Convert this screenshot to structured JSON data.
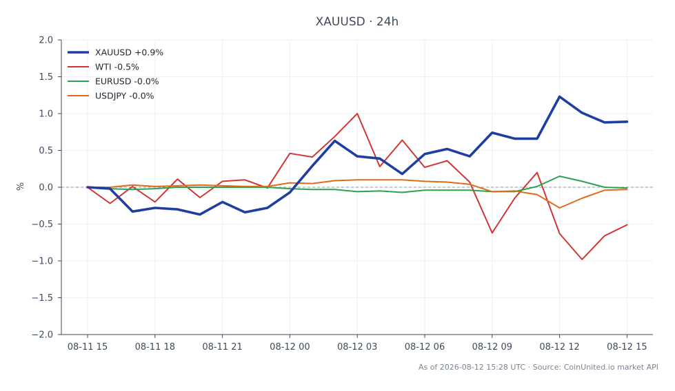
{
  "chart_data": {
    "type": "line",
    "title": "XAUUSD · 24h",
    "xlabel": "",
    "ylabel": "%",
    "ylim": [
      -2.0,
      2.0
    ],
    "yticks": [
      -2.0,
      -1.5,
      -1.0,
      -0.5,
      0.0,
      0.5,
      1.0,
      1.5,
      2.0
    ],
    "ytick_labels": [
      "−2.0",
      "−1.5",
      "−1.0",
      "−0.5",
      "0.0",
      "0.5",
      "1.0",
      "1.5",
      "2.0"
    ],
    "xticks": [
      "08-11 15",
      "08-11 18",
      "08-11 21",
      "08-12 00",
      "08-12 03",
      "08-12 06",
      "08-12 09",
      "08-12 12",
      "08-12 15"
    ],
    "x": [
      "08-11 15",
      "08-11 16",
      "08-11 17",
      "08-11 18",
      "08-11 19",
      "08-11 20",
      "08-11 21",
      "08-11 22",
      "08-11 23",
      "08-12 00",
      "08-12 01",
      "08-12 02",
      "08-12 03",
      "08-12 04",
      "08-12 05",
      "08-12 06",
      "08-12 07",
      "08-12 08",
      "08-12 09",
      "08-12 10",
      "08-12 11",
      "08-12 12",
      "08-12 13",
      "08-12 14",
      "08-12 15"
    ],
    "grid": true,
    "baseline": 0.0,
    "legend_position": "top-left",
    "series": [
      {
        "name": "XAUUSD +0.9%",
        "color": "#1f3fa0",
        "values": [
          0.0,
          -0.02,
          -0.33,
          -0.28,
          -0.3,
          -0.37,
          -0.2,
          -0.34,
          -0.28,
          -0.07,
          0.29,
          0.63,
          0.42,
          0.39,
          0.18,
          0.45,
          0.52,
          0.42,
          0.74,
          0.66,
          0.66,
          1.23,
          1.01,
          0.88,
          0.89
        ]
      },
      {
        "name": "WTI -0.5%",
        "color": "#d03434",
        "values": [
          0.0,
          -0.22,
          0.01,
          -0.2,
          0.11,
          -0.14,
          0.08,
          0.1,
          -0.01,
          0.46,
          0.41,
          0.69,
          1.0,
          0.28,
          0.64,
          0.27,
          0.36,
          0.07,
          -0.62,
          -0.15,
          0.2,
          -0.63,
          -0.98,
          -0.66,
          -0.51
        ]
      },
      {
        "name": "EURUSD -0.0%",
        "color": "#2ca24c",
        "values": [
          0.0,
          -0.02,
          -0.03,
          -0.02,
          0.0,
          0.0,
          0.0,
          0.0,
          0.0,
          -0.02,
          -0.03,
          -0.03,
          -0.06,
          -0.05,
          -0.07,
          -0.04,
          -0.04,
          -0.04,
          -0.06,
          -0.06,
          0.01,
          0.15,
          0.08,
          0.0,
          -0.01
        ]
      },
      {
        "name": "USDJPY -0.0%",
        "color": "#e06a1a",
        "values": [
          0.0,
          0.0,
          0.03,
          0.01,
          0.02,
          0.03,
          0.02,
          0.01,
          0.01,
          0.06,
          0.05,
          0.09,
          0.1,
          0.1,
          0.1,
          0.08,
          0.07,
          0.04,
          -0.06,
          -0.05,
          -0.1,
          -0.28,
          -0.15,
          -0.04,
          -0.03
        ]
      }
    ],
    "footer": "As of 2026-08-12 15:28 UTC · Source: CoinUnited.io market API"
  }
}
